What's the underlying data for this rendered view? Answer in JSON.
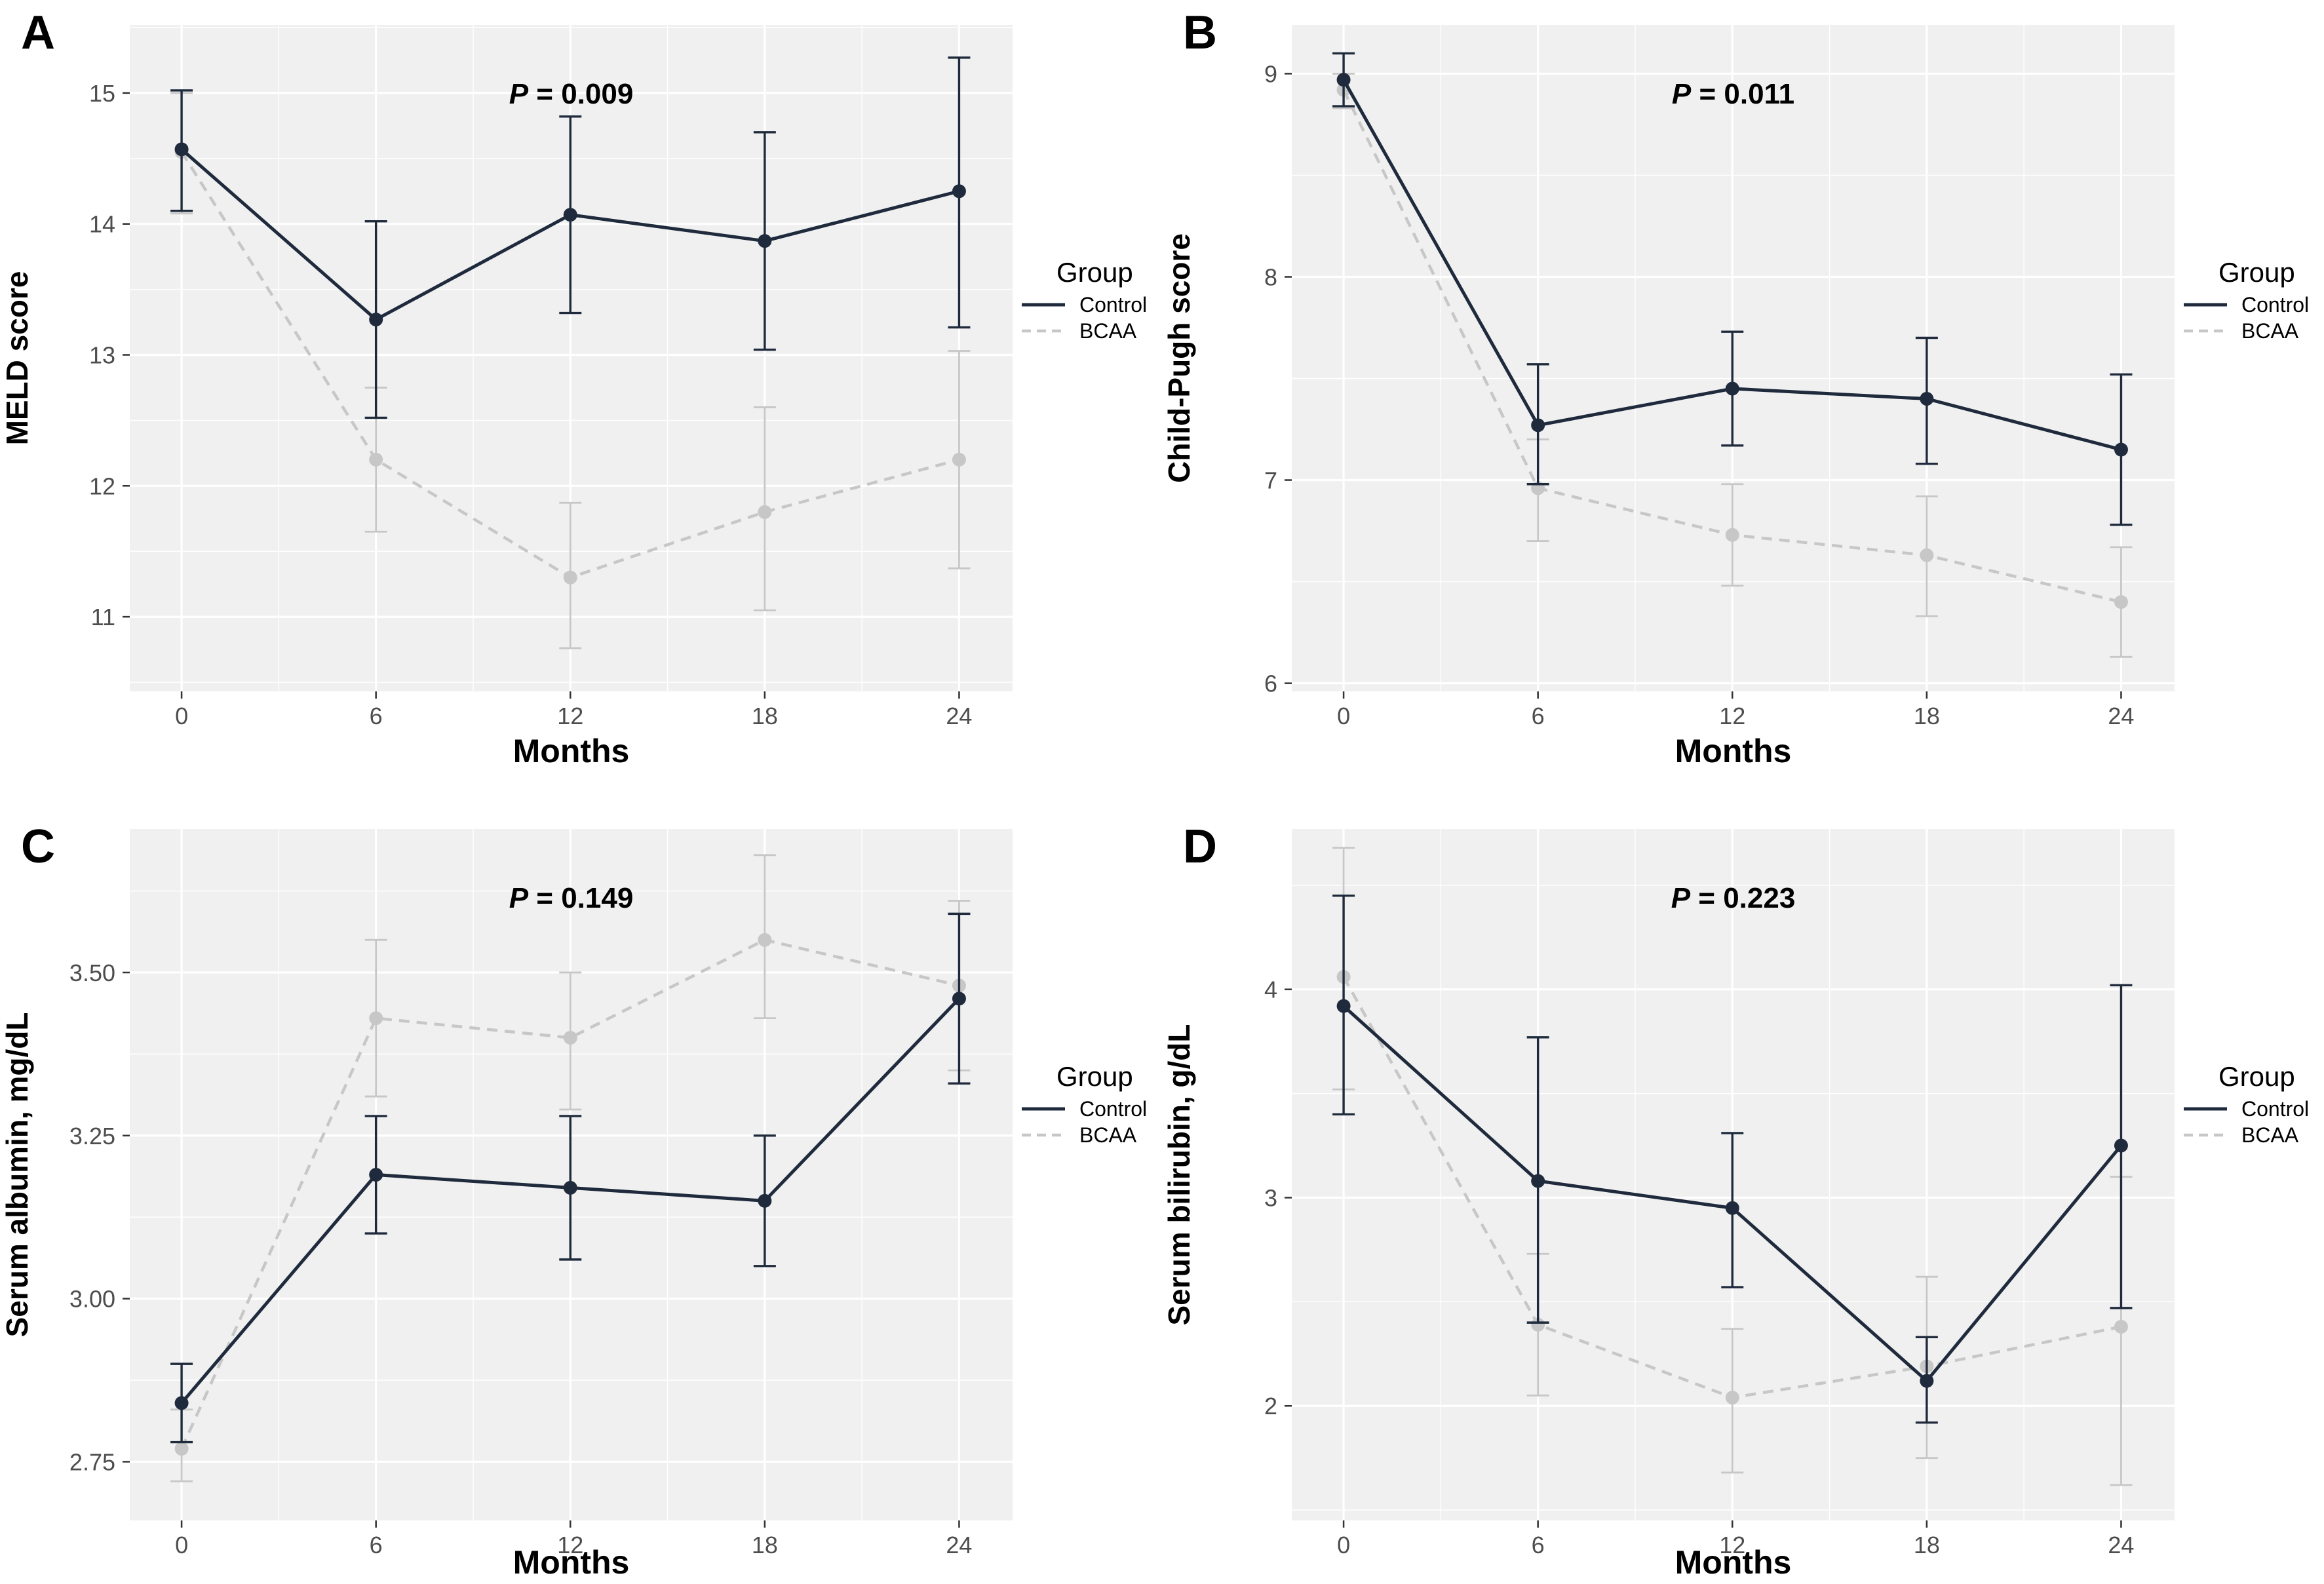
{
  "figure_title": "",
  "style": {
    "background": "#ffffff",
    "panel_bg": "#f0f0f0",
    "grid": "#ffffff",
    "tick_label_color": "#4d4d4d",
    "tick_mark_color": "#333333",
    "text_color": "#000000",
    "control_color": "#1f2b3d",
    "bcaa_color": "#c7c7c7"
  },
  "legend": {
    "title": "Group",
    "entries": [
      {
        "label": "Control",
        "style": "solid",
        "color": "#1f2b3d"
      },
      {
        "label": "BCAA",
        "style": "dashed",
        "color": "#c7c7c7"
      }
    ]
  },
  "chart_data": [
    {
      "type": "line",
      "panel": "A",
      "p_symbol": "P",
      "p_rest": "= 0.009",
      "xlabel": "Months",
      "ylabel": "MELD score",
      "x": [
        0,
        6,
        12,
        18,
        24
      ],
      "xtick_labels": [
        "0",
        "6",
        "12",
        "18",
        "24"
      ],
      "yticks": [
        11,
        12,
        13,
        14,
        15
      ],
      "ytick_labels": [
        "11",
        "12",
        "13",
        "14",
        "15"
      ],
      "ylim": [
        10.43,
        15.52
      ],
      "series": [
        {
          "name": "Control",
          "color": "#1f2b3d",
          "style": "solid",
          "values": [
            14.57,
            13.27,
            14.07,
            13.87,
            14.25
          ],
          "err_low": [
            14.1,
            12.52,
            13.32,
            13.04,
            13.21
          ],
          "err_high": [
            15.02,
            14.02,
            14.82,
            14.7,
            15.27
          ]
        },
        {
          "name": "BCAA",
          "color": "#c7c7c7",
          "style": "dashed",
          "values": [
            14.55,
            12.2,
            11.3,
            11.8,
            12.2
          ],
          "err_low": [
            14.08,
            11.65,
            10.76,
            11.05,
            11.37
          ],
          "err_high": [
            15.0,
            12.75,
            11.87,
            12.6,
            13.03
          ]
        }
      ]
    },
    {
      "type": "line",
      "panel": "B",
      "p_symbol": "P",
      "p_rest": "= 0.011",
      "xlabel": "Months",
      "ylabel": "Child-Pugh score",
      "x": [
        0,
        6,
        12,
        18,
        24
      ],
      "xtick_labels": [
        "0",
        "6",
        "12",
        "18",
        "24"
      ],
      "yticks": [
        6,
        7,
        8,
        9
      ],
      "ytick_labels": [
        "6",
        "7",
        "8",
        "9"
      ],
      "ylim": [
        5.96,
        9.24
      ],
      "series": [
        {
          "name": "Control",
          "color": "#1f2b3d",
          "style": "solid",
          "values": [
            8.97,
            7.27,
            7.45,
            7.4,
            7.15
          ],
          "err_low": [
            8.84,
            6.98,
            7.17,
            7.08,
            6.78
          ],
          "err_high": [
            9.1,
            7.57,
            7.73,
            7.7,
            7.52
          ]
        },
        {
          "name": "BCAA",
          "color": "#c7c7c7",
          "style": "dashed",
          "values": [
            8.92,
            6.96,
            6.73,
            6.63,
            6.4
          ],
          "err_low": [
            8.83,
            6.7,
            6.48,
            6.33,
            6.13
          ],
          "err_high": [
            9.0,
            7.2,
            6.98,
            6.92,
            6.67
          ]
        }
      ]
    },
    {
      "type": "line",
      "panel": "C",
      "p_symbol": "P",
      "p_rest": "= 0.149",
      "xlabel": "Months",
      "ylabel": "Serum albumin, mg/dL",
      "x": [
        0,
        6,
        12,
        18,
        24
      ],
      "xtick_labels": [
        "0",
        "6",
        "12",
        "18",
        "24"
      ],
      "yticks": [
        2.75,
        3.0,
        3.25,
        3.5
      ],
      "ytick_labels": [
        "2.75",
        "3.00",
        "3.25",
        "3.50"
      ],
      "ylim": [
        2.66,
        3.72
      ],
      "series": [
        {
          "name": "Control",
          "color": "#1f2b3d",
          "style": "solid",
          "values": [
            2.84,
            3.19,
            3.17,
            3.15,
            3.46
          ],
          "err_low": [
            2.78,
            3.1,
            3.06,
            3.05,
            3.33
          ],
          "err_high": [
            2.9,
            3.28,
            3.28,
            3.25,
            3.59
          ]
        },
        {
          "name": "BCAA",
          "color": "#c7c7c7",
          "style": "dashed",
          "values": [
            2.77,
            3.43,
            3.4,
            3.55,
            3.48
          ],
          "err_low": [
            2.72,
            3.31,
            3.29,
            3.43,
            3.35
          ],
          "err_high": [
            2.83,
            3.55,
            3.5,
            3.68,
            3.61
          ]
        }
      ]
    },
    {
      "type": "line",
      "panel": "D",
      "p_symbol": "P",
      "p_rest": "= 0.223",
      "xlabel": "Months",
      "ylabel": "Serum bilirubin, g/dL",
      "x": [
        0,
        6,
        12,
        18,
        24
      ],
      "xtick_labels": [
        "0",
        "6",
        "12",
        "18",
        "24"
      ],
      "yticks": [
        2,
        3,
        4
      ],
      "ytick_labels": [
        "2",
        "3",
        "4"
      ],
      "ylim": [
        1.45,
        4.77
      ],
      "series": [
        {
          "name": "Control",
          "color": "#1f2b3d",
          "style": "solid",
          "values": [
            3.92,
            3.08,
            2.95,
            2.12,
            3.25
          ],
          "err_low": [
            3.4,
            2.4,
            2.57,
            1.92,
            2.47
          ],
          "err_high": [
            4.45,
            3.77,
            3.31,
            2.33,
            4.02
          ]
        },
        {
          "name": "BCAA",
          "color": "#c7c7c7",
          "style": "dashed",
          "values": [
            4.06,
            2.39,
            2.04,
            2.19,
            2.38
          ],
          "err_low": [
            3.52,
            2.05,
            1.68,
            1.75,
            1.62
          ],
          "err_high": [
            4.68,
            2.73,
            2.37,
            2.62,
            3.1
          ]
        }
      ]
    }
  ]
}
